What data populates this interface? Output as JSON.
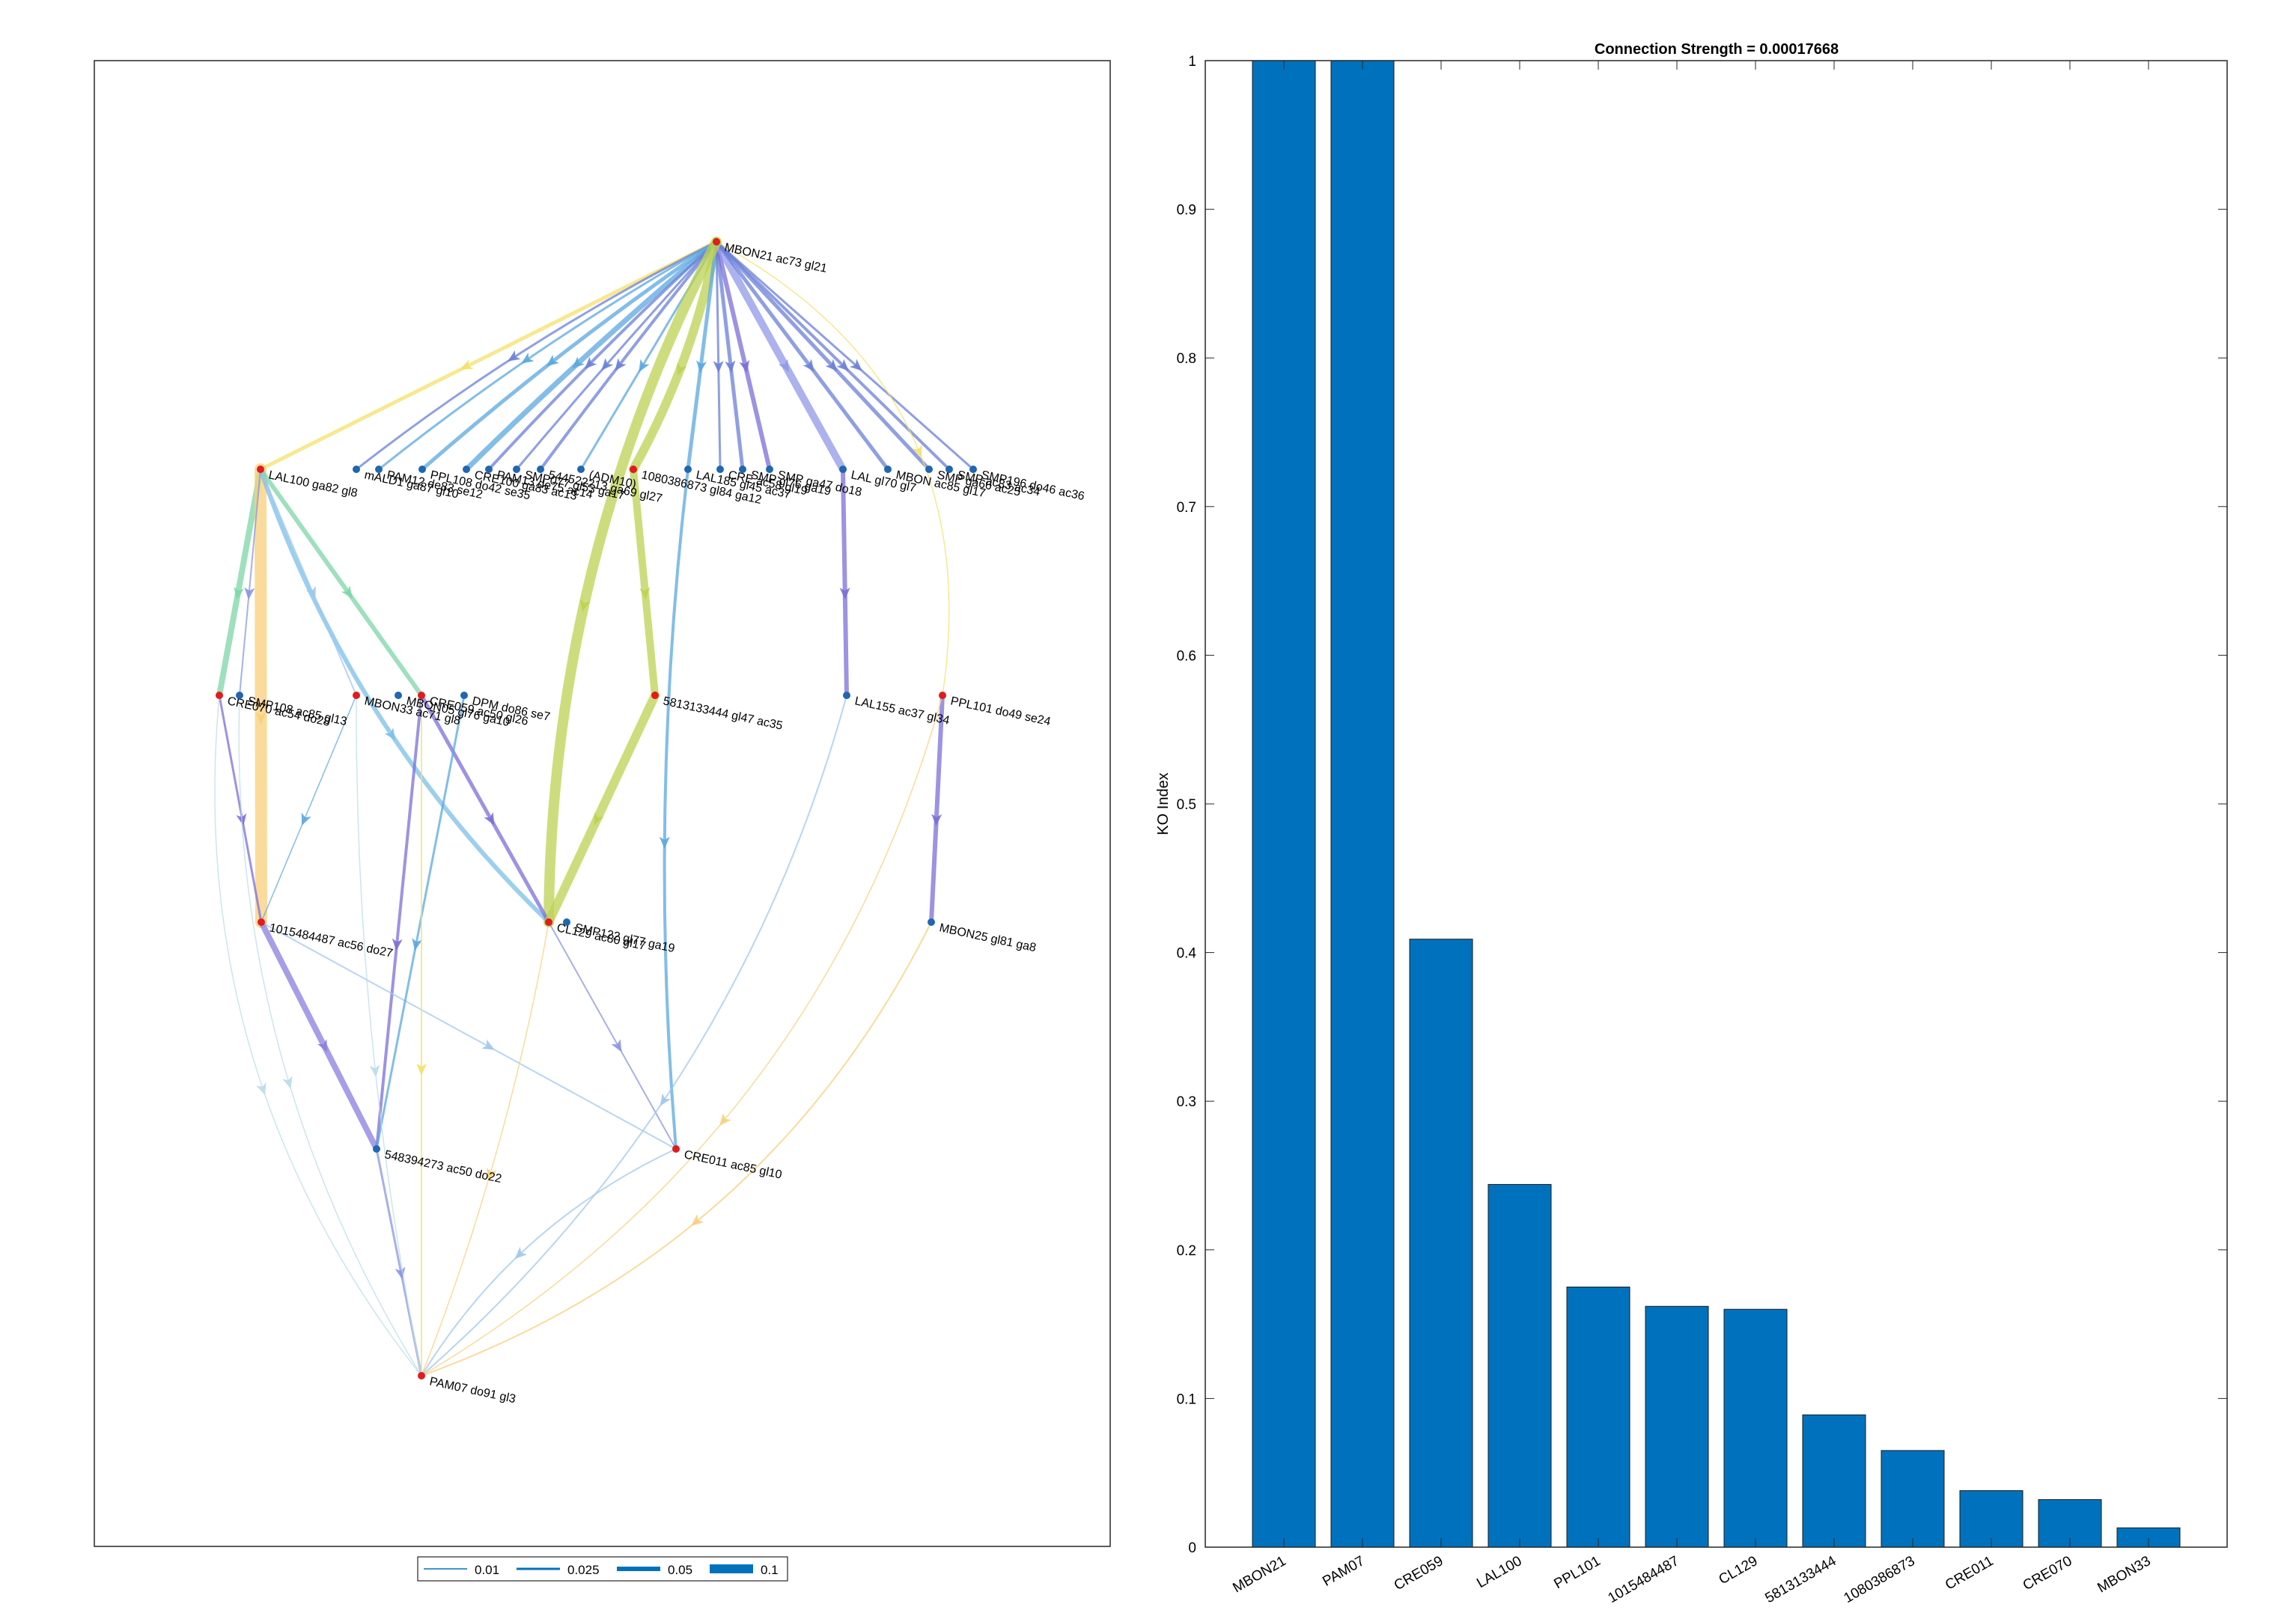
{
  "colors": {
    "bar_fill": "#0072BD",
    "bar_edge": "#1a1a1a",
    "axis": "#262626",
    "source_node": "#e41a1c",
    "other_node": "#2066b0"
  },
  "network": {
    "legend": [
      {
        "label": "0.01",
        "weight": 0.01
      },
      {
        "label": "0.025",
        "weight": 0.025
      },
      {
        "label": "0.05",
        "weight": 0.05
      },
      {
        "label": "0.1",
        "weight": 0.1
      }
    ],
    "nodes": [
      {
        "id": "n_mbon21",
        "label": "MBON21 ac73 gl21",
        "highlight": true
      },
      {
        "id": "n_lal100",
        "label": "LAL100 ga82 gl8",
        "highlight": true
      },
      {
        "id": "n_malo",
        "label": "mALD1 ga87 gl10",
        "highlight": false
      },
      {
        "id": "n_pam12",
        "label": "PAM12 de83 se12",
        "highlight": false
      },
      {
        "id": "n_ppl108",
        "label": "PPL108 do42 se35",
        "highlight": false
      },
      {
        "id": "n_cre100",
        "label": "CRE100 ga83 ac13",
        "highlight": false
      },
      {
        "id": "n_pam13",
        "label": "PAM13 de75 ac14",
        "highlight": false
      },
      {
        "id": "n_smp077",
        "label": "SMP077 gl53 ga17",
        "highlight": false
      },
      {
        "id": "n_544",
        "label": "544522213 ga69 gl27",
        "highlight": false
      },
      {
        "id": "n_adm10",
        "label": "(ADM10)",
        "highlight": false
      },
      {
        "id": "n_1080386873",
        "label": "1080386873 gl84 ga12",
        "highlight": true
      },
      {
        "id": "n_lal185",
        "label": "LAL185 gl45 ac37",
        "highlight": false
      },
      {
        "id": "n_cre",
        "label": "CRE ac58 gl19",
        "highlight": false
      },
      {
        "id": "n_smp1",
        "label": "SMP gl76 ga19",
        "highlight": false
      },
      {
        "id": "n_smp2",
        "label": "SMP ga47 do18",
        "highlight": false
      },
      {
        "id": "n_lal",
        "label": "LAL gl70 gl7",
        "highlight": false
      },
      {
        "id": "n_mbon",
        "label": "MBON ac85 gl17",
        "highlight": false
      },
      {
        "id": "n_smp3",
        "label": "SMP ga66 ac25",
        "highlight": false
      },
      {
        "id": "n_smp4",
        "label": "SMP ac83 ac34",
        "highlight": false
      },
      {
        "id": "n_smp196",
        "label": "SMP196 do46 ac36",
        "highlight": false
      },
      {
        "id": "n_cre070",
        "label": "CRE070 ac54 do28",
        "highlight": true
      },
      {
        "id": "n_smp108",
        "label": "SMP108 ac85 gl13",
        "highlight": false
      },
      {
        "id": "n_mbon33",
        "label": "MBON33 ac71 gl8",
        "highlight": true
      },
      {
        "id": "n_mbon05",
        "label": "MBON05 gl76 ga10",
        "highlight": false
      },
      {
        "id": "n_cre059",
        "label": "CRE059 ac50 gl26",
        "highlight": true
      },
      {
        "id": "n_dpm",
        "label": "DPM do86 se7",
        "highlight": false
      },
      {
        "id": "n_5813133444",
        "label": "5813133444 gl47 ac35",
        "highlight": true
      },
      {
        "id": "n_lal155",
        "label": "LAL155 ac37 gl34",
        "highlight": false
      },
      {
        "id": "n_ppl101",
        "label": "PPL101 do49 se24",
        "highlight": true
      },
      {
        "id": "n_1015484487",
        "label": "1015484487 ac56 do27",
        "highlight": true
      },
      {
        "id": "n_cl129",
        "label": "CL129 ac80 gl17",
        "highlight": true
      },
      {
        "id": "n_smp122",
        "label": "SMP122 gl77 ga19",
        "highlight": false
      },
      {
        "id": "n_mbon25",
        "label": "MBON25 gl81 ga8",
        "highlight": false
      },
      {
        "id": "n_548394273",
        "label": "548394273 ac50 do22",
        "highlight": false
      },
      {
        "id": "n_cre011",
        "label": "CRE011 ac85 gl10",
        "highlight": true
      },
      {
        "id": "n_pam07",
        "label": "PAM07 do91 gl3",
        "highlight": true
      }
    ]
  },
  "chart_data": {
    "type": "bar",
    "title": "Connection Strength = 0.00017668",
    "xlabel": "",
    "ylabel": "KO Index",
    "ylim": [
      0,
      1
    ],
    "yticks": [
      "0",
      "0.1",
      "0.2",
      "0.3",
      "0.4",
      "0.5",
      "0.6",
      "0.7",
      "0.8",
      "0.9",
      "1"
    ],
    "categories": [
      "MBON21",
      "PAM07",
      "CRE059",
      "LAL100",
      "PPL101",
      "1015484487",
      "CL129",
      "5813133444",
      "1080386873",
      "CRE011",
      "CRE070",
      "MBON33"
    ],
    "values": [
      1.0,
      1.0,
      0.409,
      0.244,
      0.175,
      0.162,
      0.16,
      0.089,
      0.065,
      0.038,
      0.032,
      0.013
    ],
    "grid": false,
    "legend": "none"
  }
}
